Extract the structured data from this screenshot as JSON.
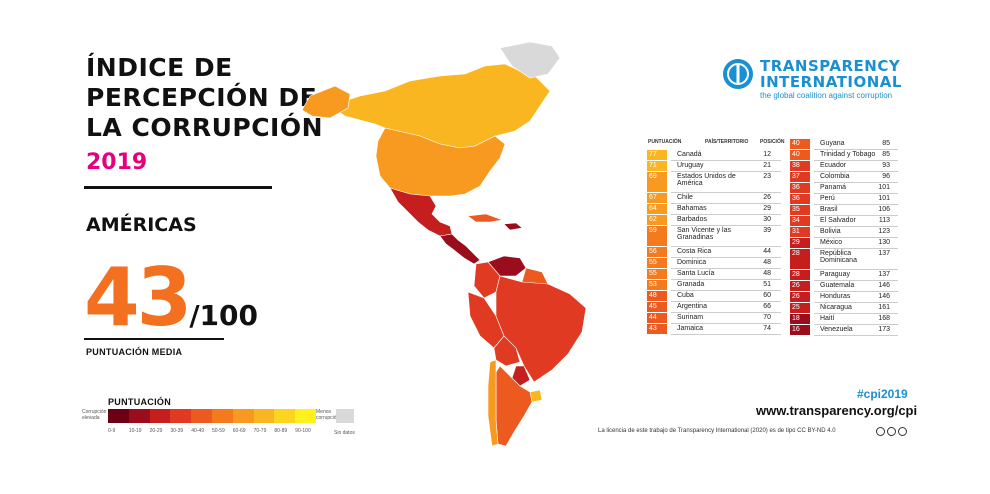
{
  "title": {
    "lines": [
      "ÍNDICE DE",
      "PERCEPCIÓN DE",
      "LA CORRUPCIÓN"
    ],
    "year": "2019"
  },
  "region": "AMÉRICAS",
  "score": {
    "value": "43",
    "denominator": "/100",
    "label": "PUNTUACIÓN MEDIA"
  },
  "legend": {
    "title": "PUNTUACIÓN",
    "left_label": "Corrupción elevada",
    "right_label": "Menos corrupción",
    "ranges": [
      "0-9",
      "10-19",
      "20-29",
      "30-39",
      "40-49",
      "50-59",
      "60-69",
      "70-79",
      "80-89",
      "90-100"
    ],
    "no_data": "Sin datos",
    "colors": [
      "#6b0014",
      "#9b0c1c",
      "#c41e1f",
      "#e03b22",
      "#ed5a1f",
      "#f47a1e",
      "#f79a1f",
      "#fab620",
      "#fcd51f",
      "#fff11e"
    ],
    "no_data_color": "#d9d9d9"
  },
  "logo": {
    "line1": "TRANSPARENCY",
    "line2": "INTERNATIONAL",
    "tagline": "the global coalition against corruption",
    "color": "#1a8fd1"
  },
  "table_headers": {
    "score": "PUNTUACIÓN",
    "country": "PAÍS/TERRITORIO",
    "rank": "POSICIÓN"
  },
  "table_left": [
    {
      "score": "77",
      "name": "Canadá",
      "rank": "12",
      "color": "#fab620"
    },
    {
      "score": "71",
      "name": "Uruguay",
      "rank": "21",
      "color": "#fab620"
    },
    {
      "score": "69",
      "name": "Estados Unidos de América",
      "rank": "23",
      "color": "#f79a1f"
    },
    {
      "score": "67",
      "name": "Chile",
      "rank": "26",
      "color": "#f79a1f"
    },
    {
      "score": "64",
      "name": "Bahamas",
      "rank": "29",
      "color": "#f79a1f"
    },
    {
      "score": "62",
      "name": "Barbados",
      "rank": "30",
      "color": "#f79a1f"
    },
    {
      "score": "59",
      "name": "San Vicente y las Granadinas",
      "rank": "39",
      "color": "#f47a1e"
    },
    {
      "score": "56",
      "name": "Costa Rica",
      "rank": "44",
      "color": "#f47a1e"
    },
    {
      "score": "55",
      "name": "Dominica",
      "rank": "48",
      "color": "#f47a1e"
    },
    {
      "score": "55",
      "name": "Santa Lucía",
      "rank": "48",
      "color": "#f47a1e"
    },
    {
      "score": "53",
      "name": "Granada",
      "rank": "51",
      "color": "#f47a1e"
    },
    {
      "score": "48",
      "name": "Cuba",
      "rank": "60",
      "color": "#ed5a1f"
    },
    {
      "score": "45",
      "name": "Argentina",
      "rank": "66",
      "color": "#ed5a1f"
    },
    {
      "score": "44",
      "name": "Surinam",
      "rank": "70",
      "color": "#ed5a1f"
    },
    {
      "score": "43",
      "name": "Jamaica",
      "rank": "74",
      "color": "#ed5a1f"
    }
  ],
  "table_right": [
    {
      "score": "40",
      "name": "Guyana",
      "rank": "85",
      "color": "#ed5a1f"
    },
    {
      "score": "40",
      "name": "Trinidad y Tobago",
      "rank": "85",
      "color": "#ed5a1f"
    },
    {
      "score": "38",
      "name": "Ecuador",
      "rank": "93",
      "color": "#e03b22"
    },
    {
      "score": "37",
      "name": "Colombia",
      "rank": "96",
      "color": "#e03b22"
    },
    {
      "score": "36",
      "name": "Panamá",
      "rank": "101",
      "color": "#e03b22"
    },
    {
      "score": "36",
      "name": "Perú",
      "rank": "101",
      "color": "#e03b22"
    },
    {
      "score": "35",
      "name": "Brasil",
      "rank": "106",
      "color": "#e03b22"
    },
    {
      "score": "34",
      "name": "El Salvador",
      "rank": "113",
      "color": "#e03b22"
    },
    {
      "score": "31",
      "name": "Bolivia",
      "rank": "123",
      "color": "#e03b22"
    },
    {
      "score": "29",
      "name": "México",
      "rank": "130",
      "color": "#c41e1f"
    },
    {
      "score": "28",
      "name": "República Dominicana",
      "rank": "137",
      "color": "#c41e1f"
    },
    {
      "score": "28",
      "name": "Paraguay",
      "rank": "137",
      "color": "#c41e1f"
    },
    {
      "score": "26",
      "name": "Guatemala",
      "rank": "146",
      "color": "#c41e1f"
    },
    {
      "score": "26",
      "name": "Honduras",
      "rank": "146",
      "color": "#c41e1f"
    },
    {
      "score": "25",
      "name": "Nicaragua",
      "rank": "161",
      "color": "#c41e1f"
    },
    {
      "score": "18",
      "name": "Haití",
      "rank": "168",
      "color": "#9b0c1c"
    },
    {
      "score": "16",
      "name": "Venezuela",
      "rank": "173",
      "color": "#9b0c1c"
    }
  ],
  "hashtag": "#cpi2019",
  "website": "www.transparency.org/cpi",
  "license": "La licencia de este trabajo de Transparency International (2020) es de tipo CC BY-ND 4.0"
}
